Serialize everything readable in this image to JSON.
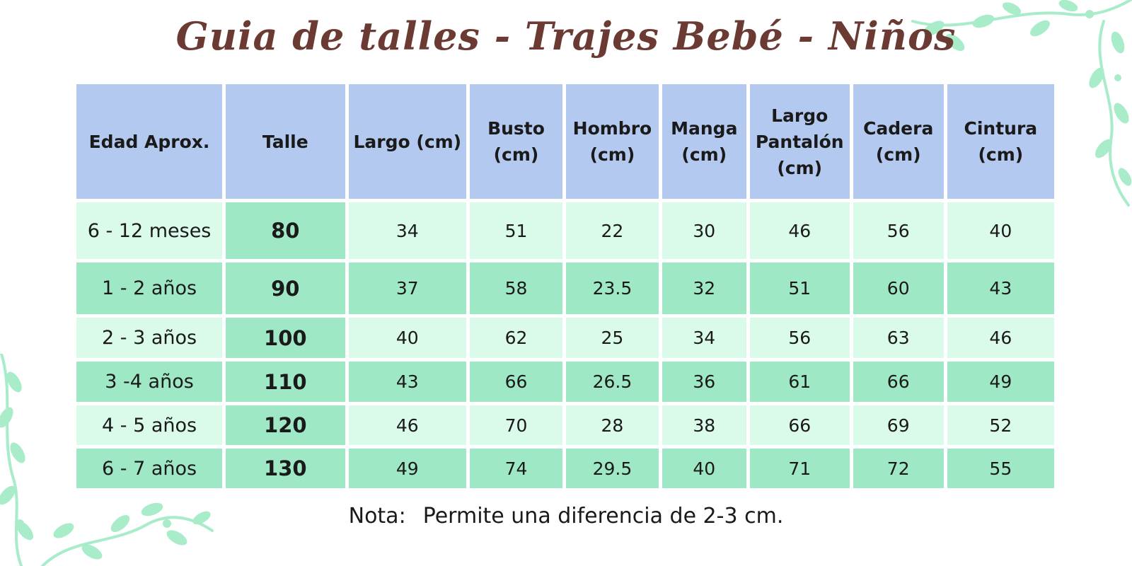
{
  "title": "Guia de talles - Trajes Bebé - Niños",
  "table": {
    "headers": [
      "Edad Aprox.",
      "Talle",
      "Largo (cm)",
      "Busto (cm)",
      "Hombro (cm)",
      "Manga (cm)",
      "Largo Pantalón (cm)",
      "Cadera (cm)",
      "Cintura (cm)"
    ],
    "rows": [
      [
        "6 - 12 meses",
        "80",
        "34",
        "51",
        "22",
        "30",
        "46",
        "56",
        "40"
      ],
      [
        "1 - 2 años",
        "90",
        "37",
        "58",
        "23.5",
        "32",
        "51",
        "60",
        "43"
      ],
      [
        "2 - 3 años",
        "100",
        "40",
        "62",
        "25",
        "34",
        "56",
        "63",
        "46"
      ],
      [
        "3 -4 años",
        "110",
        "43",
        "66",
        "26.5",
        "36",
        "61",
        "66",
        "49"
      ],
      [
        "4 - 5 años",
        "120",
        "46",
        "70",
        "28",
        "38",
        "66",
        "69",
        "52"
      ],
      [
        "6 - 7 años",
        "130",
        "49",
        "74",
        "29.5",
        "40",
        "71",
        "72",
        "55"
      ]
    ]
  },
  "note": {
    "label": "Nota:",
    "text": "Permite una diferencia de 2-3 cm."
  },
  "colors": {
    "title": "#6b3a33",
    "header_bg": "#b4c9ef",
    "row_light": "#dafaea",
    "row_dark": "#9fe8c5",
    "leaf": "#a8ecc9"
  },
  "decorations": [
    "leaf-vine-icon"
  ]
}
